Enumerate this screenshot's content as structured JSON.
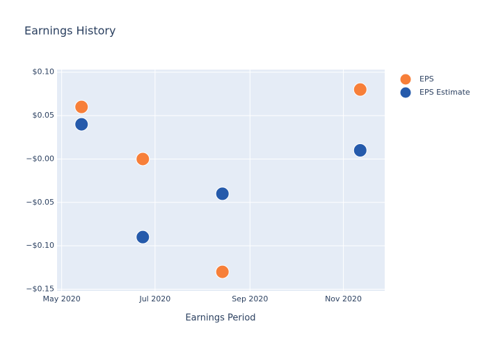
{
  "chart_data": {
    "type": "scatter",
    "title": "Earnings History",
    "x_label": "Earnings Period",
    "x": [
      "2020-05-14",
      "2020-06-23",
      "2020-08-14",
      "2020-11-12"
    ],
    "series": [
      {
        "name": "EPS",
        "color": "#f77f39",
        "values": [
          0.06,
          0.0,
          -0.13,
          0.08
        ]
      },
      {
        "name": "EPS Estimate",
        "color": "#255aab",
        "values": [
          0.04,
          -0.09,
          -0.04,
          0.01
        ]
      }
    ],
    "xlim": [
      "2020-04-28",
      "2020-11-28"
    ],
    "xticks": [
      {
        "value": "2020-05-01",
        "label": "May 2020"
      },
      {
        "value": "2020-07-01",
        "label": "Jul 2020"
      },
      {
        "value": "2020-09-01",
        "label": "Sep 2020"
      },
      {
        "value": "2020-11-01",
        "label": "Nov 2020"
      }
    ],
    "ylim": [
      -0.152,
      0.103
    ],
    "yticks": [
      {
        "value": -0.15,
        "label": "−$0.15"
      },
      {
        "value": -0.1,
        "label": "−$0.10"
      },
      {
        "value": -0.05,
        "label": "−$0.05"
      },
      {
        "value": 0,
        "label": "−$0.00"
      },
      {
        "value": 0.05,
        "label": "$0.05"
      },
      {
        "value": 0.1,
        "label": "$0.10"
      }
    ],
    "grid": true,
    "legend": "top-right"
  }
}
